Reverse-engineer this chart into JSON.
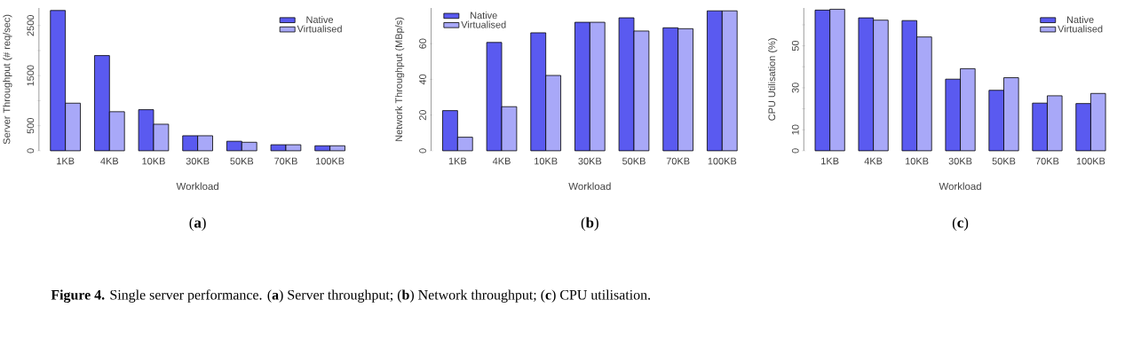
{
  "chart_data": [
    {
      "type": "bar",
      "title": "(**a**)",
      "xlabel": "Workload",
      "ylabel": "Server Throughput (# req/sec)",
      "categories": [
        "1KB",
        "4KB",
        "10KB",
        "30KB",
        "50KB",
        "70KB",
        "100KB"
      ],
      "series": [
        {
          "name": "Native",
          "color": "#5a5af0",
          "values": [
            2800,
            1900,
            820,
            300,
            190,
            120,
            100
          ]
        },
        {
          "name": "Virtualised",
          "color": "#a8a8f8",
          "values": [
            950,
            780,
            530,
            300,
            170,
            120,
            100
          ]
        }
      ],
      "ylim": [
        0,
        2850
      ],
      "yticks": [
        0,
        500,
        {
          "value": 1000,
          "label": null
        },
        1500,
        {
          "value": 2000,
          "label": null
        },
        2500
      ],
      "legend": "top right",
      "grid": false,
      "annotations": [
        "**Figure 4.** Single server performance. (**a**) Server throughput; (**b**) Network throughput; (**c**) CPU utilisation."
      ]
    },
    {
      "type": "bar",
      "title": "(**b**)",
      "xlabel": "Workload",
      "ylabel": "Network Throughput (MBp/s)",
      "categories": [
        "1KB",
        "4KB",
        "10KB",
        "30KB",
        "50KB",
        "70KB",
        "100KB"
      ],
      "series": [
        {
          "name": "Native",
          "color": "#5a5af0",
          "values": [
            22.5,
            60.7,
            66.1,
            72,
            74.5,
            68.9,
            78.4
          ]
        },
        {
          "name": "Virtualised",
          "color": "#a8a8f8",
          "values": [
            7.6,
            24.7,
            42.2,
            72,
            67.1,
            68.4,
            78.4
          ]
        }
      ],
      "ylim": [
        0,
        80
      ],
      "yticks": [
        0,
        20,
        40,
        60
      ],
      "legend": "top left",
      "grid": false
    },
    {
      "type": "bar",
      "title": "(**c**)",
      "xlabel": "Workload",
      "ylabel": "CPU Utilisation (%)",
      "categories": [
        "1KB",
        "4KB",
        "10KB",
        "30KB",
        "50KB",
        "70KB",
        "100KB"
      ],
      "series": [
        {
          "name": "Native",
          "color": "#5a5af0",
          "values": [
            67.0,
            63.3,
            62.0,
            34.1,
            28.8,
            22.7,
            22.5
          ]
        },
        {
          "name": "Virtualised",
          "color": "#a8a8f8",
          "values": [
            67.4,
            62.2,
            54.2,
            39.1,
            34.8,
            26.2,
            27.3
          ]
        }
      ],
      "ylim": [
        0,
        68
      ],
      "yticks": [
        0,
        10,
        {
          "value": 20,
          "label": null
        },
        30,
        {
          "value": 40,
          "label": null
        },
        50,
        {
          "value": 60,
          "label": null
        }
      ],
      "legend": "top right",
      "grid": false
    }
  ]
}
